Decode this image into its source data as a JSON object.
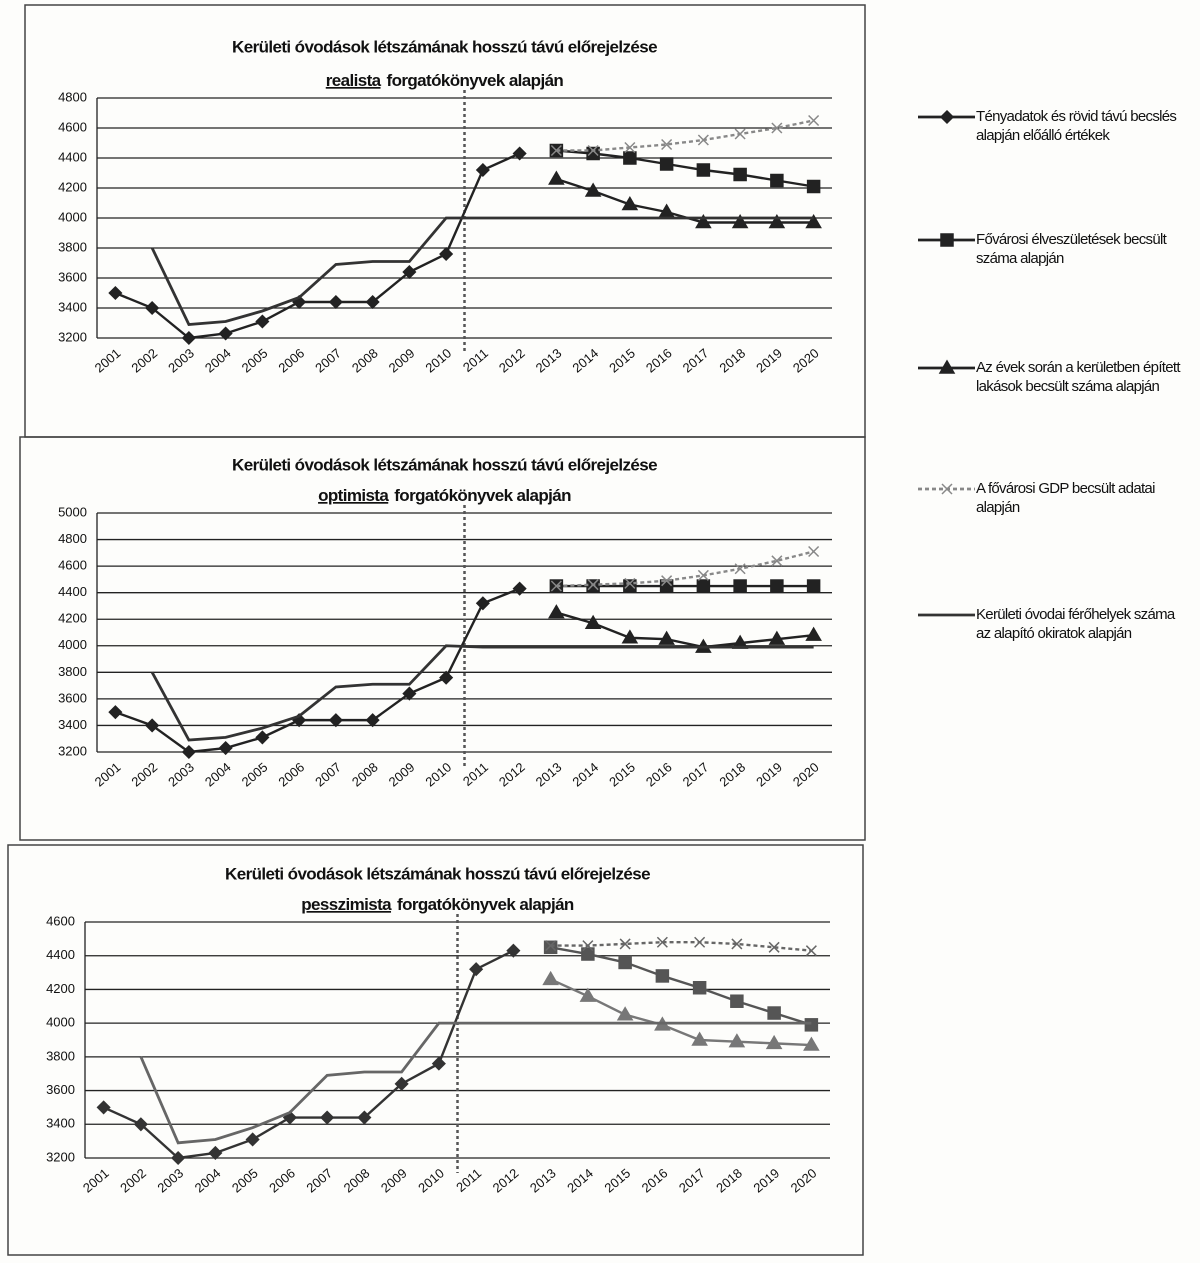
{
  "chart_data": [
    {
      "type": "line",
      "title": "Kerületi óvodások létszámának hosszú távú előrejelzése",
      "title_scenario": "realista",
      "title_suffix": "forgatókönyvek alapján",
      "categories": [
        "2001",
        "2002",
        "2003",
        "2004",
        "2005",
        "2006",
        "2007",
        "2008",
        "2009",
        "2010",
        "2011",
        "2012",
        "2013",
        "2014",
        "2015",
        "2016",
        "2017",
        "2018",
        "2019",
        "2020"
      ],
      "ylim": [
        3200,
        4800
      ],
      "yticks": [
        3200,
        3400,
        3600,
        3800,
        4000,
        4200,
        4400,
        4600,
        4800
      ],
      "grid": true,
      "series": [
        {
          "name": "Tényadatok és rövid távú becslés alapján előálló értékek",
          "color": "#222222",
          "marker": "diamond",
          "dash": false,
          "values": [
            3500,
            3400,
            3200,
            3230,
            3310,
            3440,
            3440,
            3440,
            3640,
            3760,
            4320,
            4430,
            null,
            null,
            null,
            null,
            null,
            null,
            null,
            null
          ]
        },
        {
          "name": "Fővárosi élveszületések becsült száma alapján",
          "color": "#222222",
          "marker": "square",
          "dash": false,
          "values": [
            null,
            null,
            null,
            null,
            null,
            null,
            null,
            null,
            null,
            null,
            null,
            null,
            4450,
            4430,
            4400,
            4360,
            4320,
            4290,
            4250,
            4210
          ]
        },
        {
          "name": "Az évek során a kerületben épített lakások becsült száma alapján",
          "color": "#222222",
          "marker": "triangle",
          "dash": false,
          "values": [
            null,
            null,
            null,
            null,
            null,
            null,
            null,
            null,
            null,
            null,
            null,
            null,
            4260,
            4180,
            4090,
            4040,
            3970,
            3970,
            3970,
            3970
          ]
        },
        {
          "name": "A fővárosi GDP becsült adatai alapján",
          "color": "#888888",
          "marker": "x",
          "dash": true,
          "values": [
            null,
            null,
            null,
            null,
            null,
            null,
            null,
            null,
            null,
            null,
            null,
            null,
            4450,
            4450,
            4470,
            4490,
            4520,
            4560,
            4600,
            4650
          ]
        },
        {
          "name": "Kerületi óvodai férőhelyek száma az alapító okiratok alapján",
          "color": "#333333",
          "marker": "none",
          "dash": false,
          "values": [
            null,
            3800,
            3290,
            3310,
            3380,
            3470,
            3690,
            3710,
            3710,
            4000,
            4000,
            4000,
            4000,
            4000,
            4000,
            4000,
            4000,
            4000,
            4000,
            4000
          ]
        }
      ]
    },
    {
      "type": "line",
      "title": "Kerületi óvodások létszámának hosszú távú előrejelzése",
      "title_scenario": "optimista",
      "title_suffix": "forgatókönyvek alapján",
      "categories": [
        "2001",
        "2002",
        "2003",
        "2004",
        "2005",
        "2006",
        "2007",
        "2008",
        "2009",
        "2010",
        "2011",
        "2012",
        "2013",
        "2014",
        "2015",
        "2016",
        "2017",
        "2018",
        "2019",
        "2020"
      ],
      "ylim": [
        3200,
        5000
      ],
      "yticks": [
        3200,
        3400,
        3600,
        3800,
        4000,
        4200,
        4400,
        4600,
        4800,
        5000
      ],
      "grid": true,
      "series": [
        {
          "color": "#222222",
          "marker": "diamond",
          "dash": false,
          "values": [
            3500,
            3400,
            3200,
            3230,
            3310,
            3440,
            3440,
            3440,
            3640,
            3760,
            4320,
            4430,
            null,
            null,
            null,
            null,
            null,
            null,
            null,
            null
          ]
        },
        {
          "color": "#222222",
          "marker": "square",
          "dash": false,
          "values": [
            null,
            null,
            null,
            null,
            null,
            null,
            null,
            null,
            null,
            null,
            null,
            null,
            4450,
            4450,
            4450,
            4450,
            4450,
            4450,
            4450,
            4450
          ]
        },
        {
          "color": "#222222",
          "marker": "triangle",
          "dash": false,
          "values": [
            null,
            null,
            null,
            null,
            null,
            null,
            null,
            null,
            null,
            null,
            null,
            null,
            4250,
            4170,
            4060,
            4050,
            3990,
            4020,
            4050,
            4080
          ]
        },
        {
          "color": "#888888",
          "marker": "x",
          "dash": true,
          "values": [
            null,
            null,
            null,
            null,
            null,
            null,
            null,
            null,
            null,
            null,
            null,
            null,
            4450,
            4460,
            4470,
            4490,
            4530,
            4580,
            4640,
            4710
          ]
        },
        {
          "color": "#333333",
          "marker": "none",
          "dash": false,
          "values": [
            null,
            3800,
            3290,
            3310,
            3380,
            3470,
            3690,
            3710,
            3710,
            4000,
            3990,
            3990,
            3990,
            3990,
            3990,
            3990,
            3990,
            3990,
            3990,
            3990
          ]
        }
      ]
    },
    {
      "type": "line",
      "title": "Kerületi óvodások létszámának hosszú távú előrejelzése",
      "title_scenario": "pesszimista",
      "title_suffix": "forgatókönyvek alapján",
      "categories": [
        "2001",
        "2002",
        "2003",
        "2004",
        "2005",
        "2006",
        "2007",
        "2008",
        "2009",
        "2010",
        "2011",
        "2012",
        "2013",
        "2014",
        "2015",
        "2016",
        "2017",
        "2018",
        "2019",
        "2020"
      ],
      "ylim": [
        3200,
        4600
      ],
      "yticks": [
        3200,
        3400,
        3600,
        3800,
        4000,
        4200,
        4400,
        4600
      ],
      "grid": true,
      "series": [
        {
          "color": "#333333",
          "marker": "diamond",
          "dash": false,
          "values": [
            3500,
            3400,
            3200,
            3230,
            3310,
            3440,
            3440,
            3440,
            3640,
            3760,
            4320,
            4430,
            null,
            null,
            null,
            null,
            null,
            null,
            null,
            null
          ]
        },
        {
          "color": "#555555",
          "marker": "square",
          "dash": false,
          "values": [
            null,
            null,
            null,
            null,
            null,
            null,
            null,
            null,
            null,
            null,
            null,
            null,
            4450,
            4410,
            4360,
            4280,
            4210,
            4130,
            4060,
            3990
          ]
        },
        {
          "color": "#777777",
          "marker": "triangle",
          "dash": false,
          "values": [
            null,
            null,
            null,
            null,
            null,
            null,
            null,
            null,
            null,
            null,
            null,
            null,
            4260,
            4160,
            4050,
            3990,
            3900,
            3890,
            3880,
            3870
          ]
        },
        {
          "color": "#666666",
          "marker": "x",
          "dash": true,
          "values": [
            null,
            null,
            null,
            null,
            null,
            null,
            null,
            null,
            null,
            null,
            null,
            null,
            4460,
            4460,
            4470,
            4480,
            4480,
            4470,
            4450,
            4430
          ]
        },
        {
          "color": "#666666",
          "marker": "none",
          "dash": false,
          "values": [
            null,
            3800,
            3290,
            3310,
            3380,
            3470,
            3690,
            3710,
            3710,
            4000,
            4000,
            4000,
            4000,
            4000,
            4000,
            4000,
            4000,
            4000,
            4000,
            4000
          ]
        }
      ]
    }
  ]
}
